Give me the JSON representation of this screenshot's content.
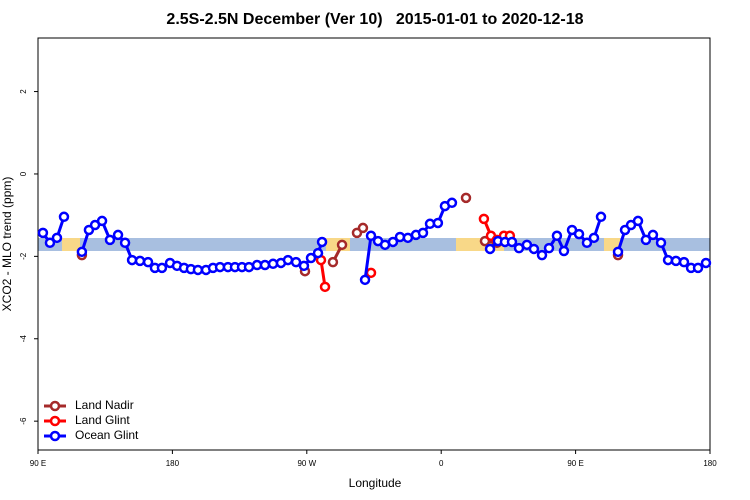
{
  "chart_data": {
    "type": "line",
    "title": "2.5S-2.5N December (Ver 10)   2015-01-01 to 2020-12-18",
    "x_label": "Longitude",
    "y_label": "XCO2 - MLO trend (ppm)",
    "xlim": [
      90,
      540
    ],
    "ylim": [
      -6.7,
      3.3
    ],
    "xticks": [
      {
        "value": 90,
        "label": "90 E"
      },
      {
        "value": 180,
        "label": "180"
      },
      {
        "value": 270,
        "label": "90 W"
      },
      {
        "value": 360,
        "label": "0"
      },
      {
        "value": 450,
        "label": "90 E"
      },
      {
        "value": 540,
        "label": "180"
      }
    ],
    "yticks": [
      -6,
      -4,
      -2,
      0,
      2
    ],
    "legend": "bottom-left",
    "series": [
      {
        "name": "Land Nadir",
        "color": "#a52a2a",
        "x": [
          119.4,
          190,
          268.8,
          280,
          287.5,
          293.6,
          300,
          303.6,
          307.6,
          340,
          376.6,
          385,
          389.3,
          397.3,
          440,
          478.4
        ],
        "values": [
          -1.97,
          null,
          -2.36,
          null,
          -2.14,
          -1.72,
          null,
          -1.43,
          -1.31,
          null,
          -0.58,
          null,
          -1.63,
          -1.67,
          null,
          -1.97
        ]
      },
      {
        "name": "Land Glint",
        "color": "#ff0000",
        "x": [
          279.5,
          282.2,
          295,
          313.0,
          350,
          388.6,
          393.3,
          397.3,
          402.0,
          406.0
        ],
        "values": [
          -2.09,
          -2.74,
          null,
          -2.4,
          null,
          -1.09,
          -1.5,
          -1.6,
          -1.5,
          -1.5
        ]
      },
      {
        "name": "Ocean Glint",
        "color": "#0000ff",
        "x": [
          93.3,
          98.0,
          102.7,
          107.4,
          113,
          119.4,
          124.1,
          128.2,
          132.9,
          138.2,
          143.6,
          148.3,
          153.0,
          158.3,
          163.7,
          168.3,
          173.0,
          178.4,
          183.1,
          187.8,
          192.4,
          197.1,
          202.5,
          207.2,
          211.9,
          217.2,
          221.9,
          226.6,
          231.3,
          236.7,
          242.0,
          247.4,
          252.7,
          257.4,
          262.8,
          268.1,
          272.8,
          277.5,
          280.2,
          300,
          309.0,
          313.0,
          317.7,
          322.4,
          327.7,
          332.4,
          337.7,
          343.1,
          347.8,
          352.5,
          357.8,
          362.5,
          367.2,
          380,
          392.7,
          398.0,
          402.7,
          407.4,
          412.1,
          417.4,
          422.1,
          427.5,
          432.2,
          437.5,
          442.2,
          447.6,
          452.3,
          457.6,
          462.3,
          467.0,
          473,
          478.4,
          483.1,
          487.1,
          491.8,
          497.1,
          501.8,
          507.2,
          511.9,
          517.2,
          522.6,
          527.3,
          532.0,
          537.3
        ],
        "values": [
          -1.43,
          -1.67,
          -1.55,
          -1.04,
          null,
          -1.89,
          -1.36,
          -1.24,
          -1.14,
          -1.6,
          -1.48,
          -1.67,
          -2.09,
          -2.11,
          -2.14,
          -2.28,
          -2.28,
          -2.16,
          -2.23,
          -2.28,
          -2.31,
          -2.33,
          -2.33,
          -2.28,
          -2.26,
          -2.26,
          -2.26,
          -2.26,
          -2.26,
          -2.21,
          -2.21,
          -2.18,
          -2.16,
          -2.09,
          -2.14,
          -2.23,
          -2.04,
          -1.92,
          -1.65,
          null,
          -2.57,
          -1.5,
          -1.63,
          -1.72,
          -1.65,
          -1.53,
          -1.55,
          -1.48,
          -1.43,
          -1.21,
          -1.19,
          -0.78,
          -0.7,
          null,
          -1.82,
          -1.63,
          -1.65,
          -1.65,
          -1.8,
          -1.72,
          -1.82,
          -1.97,
          -1.8,
          -1.5,
          -1.87,
          -1.36,
          -1.46,
          -1.67,
          -1.55,
          -1.04,
          null,
          -1.89,
          -1.36,
          -1.24,
          -1.14,
          -1.6,
          -1.48,
          -1.67,
          -2.09,
          -2.11,
          -2.14,
          -2.28,
          -2.28,
          -2.16
        ]
      }
    ]
  }
}
